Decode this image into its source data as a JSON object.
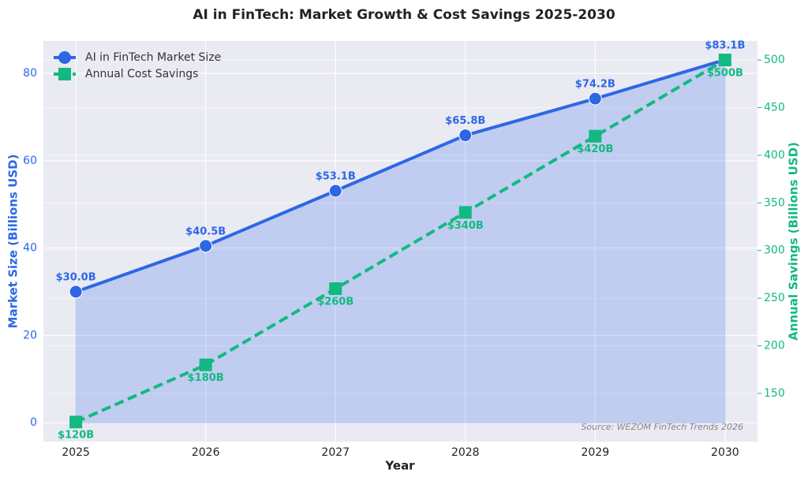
{
  "chart_data": {
    "type": "line",
    "title": "AI in FinTech: Market Growth & Cost Savings 2025-2030",
    "x_label": "Year",
    "y_label": "Market Size (Billions USD)",
    "y2_label": "Annual Savings (Billions USD)",
    "x": [
      2025,
      2026,
      2027,
      2028,
      2029,
      2030
    ],
    "xlim": [
      2024.75,
      2030.25
    ],
    "xticks": [
      2025,
      2026,
      2027,
      2028,
      2029,
      2030
    ],
    "ylim": [
      -4.3,
      87.4
    ],
    "yticks": [
      0,
      20,
      40,
      60,
      80
    ],
    "y2lim": [
      99.5,
      519.9
    ],
    "y2ticks": [
      150,
      200,
      250,
      300,
      350,
      400,
      450,
      500
    ],
    "grid": true,
    "legend": "upper left",
    "series": [
      {
        "name": "AI in FinTech Market Size",
        "color": "#2d67e6",
        "values": [
          30.0,
          40.5,
          53.1,
          65.8,
          74.2,
          83.1
        ],
        "value_labels": [
          "$30.0B",
          "$40.5B",
          "$53.1B",
          "$65.8B",
          "$74.2B",
          "$83.1B"
        ],
        "marker": "circle",
        "fill": true
      },
      {
        "name": "Annual Cost Savings",
        "color": "#12b981",
        "axis": "y2",
        "values": [
          120,
          180,
          260,
          340,
          420,
          500
        ],
        "value_labels": [
          "$120B",
          "$180B",
          "$260B",
          "$340B",
          "$420B",
          "$500B"
        ],
        "marker": "square",
        "dashed": true
      }
    ],
    "annotation": "Source: WEZOM FinTech Trends 2026"
  }
}
